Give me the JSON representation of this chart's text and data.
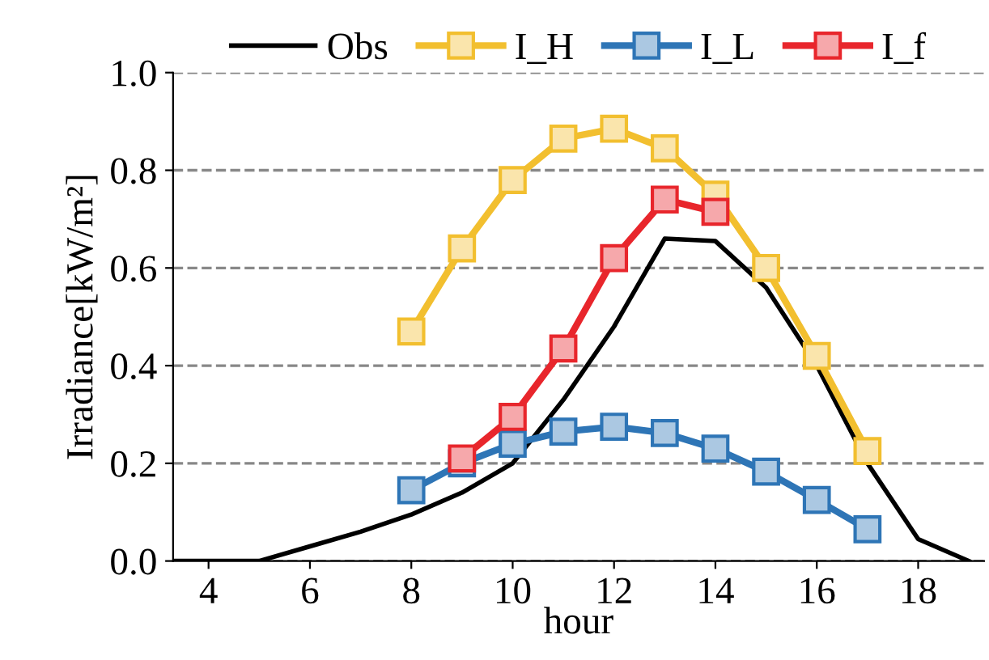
{
  "chart_data": {
    "type": "line",
    "xlabel": "hour",
    "ylabel": "Irradiance[kW/m²]",
    "xlim": [
      3.3,
      19.3
    ],
    "xticks": [
      4,
      6,
      8,
      10,
      12,
      14,
      16,
      18
    ],
    "ylim": [
      0,
      1.0
    ],
    "yticks": [
      {
        "value": 0,
        "label": "0.0"
      },
      {
        "value": 0.2,
        "label": "0.2"
      },
      {
        "value": 0.4,
        "label": "0.4"
      },
      {
        "value": 0.6,
        "label": "0.6"
      },
      {
        "value": 0.8,
        "label": "0.8"
      },
      {
        "value": 1.0,
        "label": "1.0"
      }
    ],
    "grid": "y",
    "legend": "top",
    "line_style": "solid",
    "series": [
      {
        "name": "Obs",
        "color": "#000000",
        "marker": "none",
        "x": [
          3.3,
          4,
          5,
          6,
          7,
          8,
          9,
          10,
          11,
          12,
          13,
          14,
          15,
          16,
          17,
          18,
          19
        ],
        "values": [
          0,
          0,
          0,
          0.03,
          0.06,
          0.095,
          0.14,
          0.2,
          0.33,
          0.48,
          0.66,
          0.655,
          0.56,
          0.4,
          0.2,
          0.045,
          0
        ]
      },
      {
        "name": "I_H",
        "color": "#f2bf2f",
        "marker": "square",
        "x": [
          8,
          9,
          10,
          11,
          12,
          13,
          14,
          15,
          16,
          17
        ],
        "values": [
          0.47,
          0.64,
          0.78,
          0.865,
          0.885,
          0.845,
          0.75,
          0.6,
          0.42,
          0.225
        ]
      },
      {
        "name": "I_L",
        "color": "#2e75b6",
        "marker": "square",
        "x": [
          8,
          9,
          10,
          11,
          12,
          13,
          14,
          15,
          16,
          17
        ],
        "values": [
          0.145,
          0.2,
          0.24,
          0.265,
          0.275,
          0.262,
          0.23,
          0.183,
          0.125,
          0.065
        ]
      },
      {
        "name": "I_f",
        "color": "#e8262c",
        "marker": "square",
        "x": [
          9,
          10,
          11,
          12,
          13,
          14
        ],
        "values": [
          0.21,
          0.295,
          0.435,
          0.62,
          0.74,
          0.715
        ]
      }
    ]
  }
}
